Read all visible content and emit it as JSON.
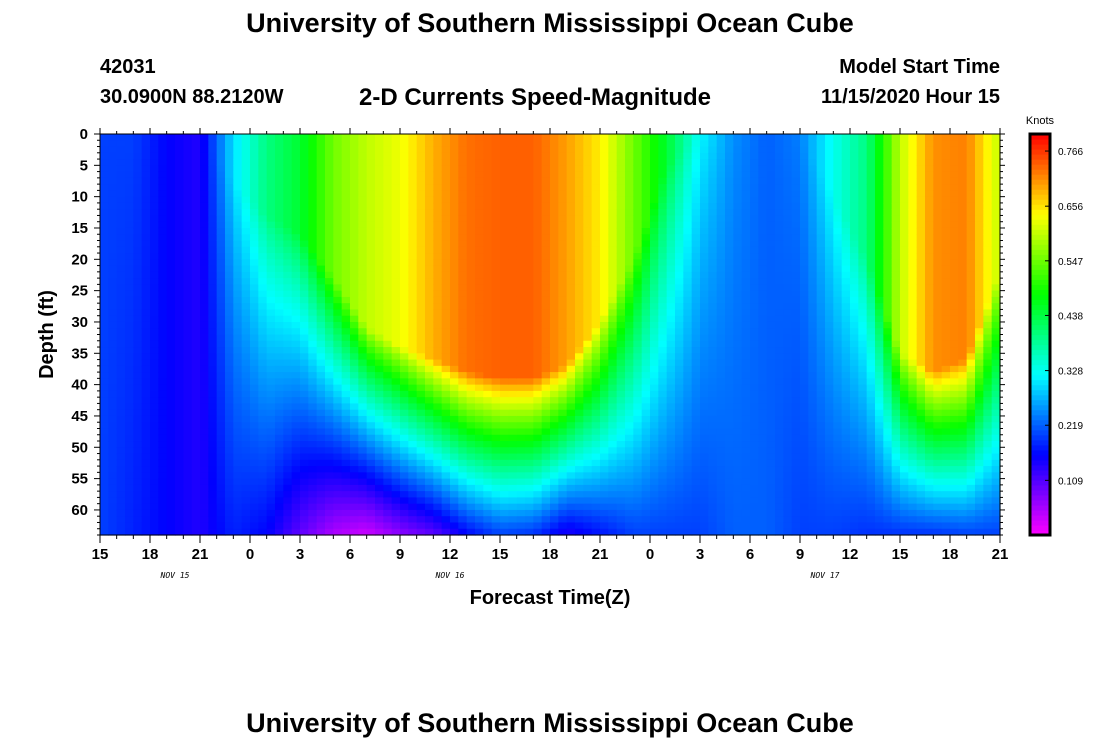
{
  "header": {
    "title": "University of Southern Mississippi Ocean Cube",
    "station": "42031",
    "coords": "30.0900N 88.2120W",
    "subtitle": "2-D Currents Speed-Magnitude",
    "model_start_label": "Model Start Time",
    "model_start_date": "11/15/2020 Hour 15"
  },
  "footer": {
    "title": "University of Southern Mississippi Ocean Cube"
  },
  "chart_data": {
    "type": "heatmap",
    "title": "2-D Currents Speed-Magnitude",
    "xlabel": "Forecast Time(Z)",
    "ylabel": "Depth (ft)",
    "x_tick_labels": [
      "15",
      "18",
      "21",
      "0",
      "3",
      "6",
      "9",
      "12",
      "15",
      "18",
      "21",
      "0",
      "3",
      "6",
      "9",
      "12",
      "15",
      "18",
      "21"
    ],
    "x_range_hours": [
      0,
      54
    ],
    "date_labels": [
      {
        "text": "NOV 15",
        "hour": 4.5
      },
      {
        "text": "NOV 16",
        "hour": 21
      },
      {
        "text": "NOV 17",
        "hour": 43.5
      }
    ],
    "y_ticks": [
      0,
      5,
      10,
      15,
      20,
      25,
      30,
      35,
      40,
      45,
      50,
      55,
      60
    ],
    "ylim": [
      0,
      64
    ],
    "colorbar": {
      "unit": "Knots",
      "range": [
        0.0,
        0.8
      ],
      "tick_values": [
        0.766,
        0.656,
        0.547,
        0.438,
        0.328,
        0.219,
        0.109
      ],
      "tick_labels": [
        "0.766",
        "0.656",
        "0.547",
        "0.438",
        "0.328",
        "0.219",
        "0.109"
      ]
    },
    "column_profiles": {
      "hours": [
        0,
        2,
        4,
        6,
        8,
        10,
        12,
        14,
        16,
        18,
        20,
        22,
        24,
        26,
        28,
        30,
        32,
        34,
        36,
        38,
        40,
        42,
        44,
        46,
        48,
        50,
        52,
        54
      ],
      "surface": [
        0.2,
        0.2,
        0.16,
        0.14,
        0.3,
        0.4,
        0.45,
        0.55,
        0.6,
        0.63,
        0.69,
        0.73,
        0.74,
        0.74,
        0.7,
        0.65,
        0.55,
        0.45,
        0.32,
        0.25,
        0.22,
        0.24,
        0.33,
        0.4,
        0.6,
        0.71,
        0.72,
        0.6
      ],
      "edge_depth": [
        0,
        0,
        0,
        0,
        8,
        13,
        16,
        23,
        31,
        34,
        36,
        38,
        39,
        39,
        37,
        30,
        20,
        5,
        0,
        0,
        0,
        0,
        10,
        20,
        35,
        38,
        36,
        22
      ],
      "bottom": [
        0.2,
        0.18,
        0.16,
        0.14,
        0.18,
        0.16,
        0.1,
        0.05,
        0.03,
        0.07,
        0.1,
        0.16,
        0.2,
        0.19,
        0.14,
        0.17,
        0.2,
        0.2,
        0.2,
        0.22,
        0.22,
        0.2,
        0.2,
        0.19,
        0.19,
        0.19,
        0.2,
        0.2
      ]
    }
  }
}
